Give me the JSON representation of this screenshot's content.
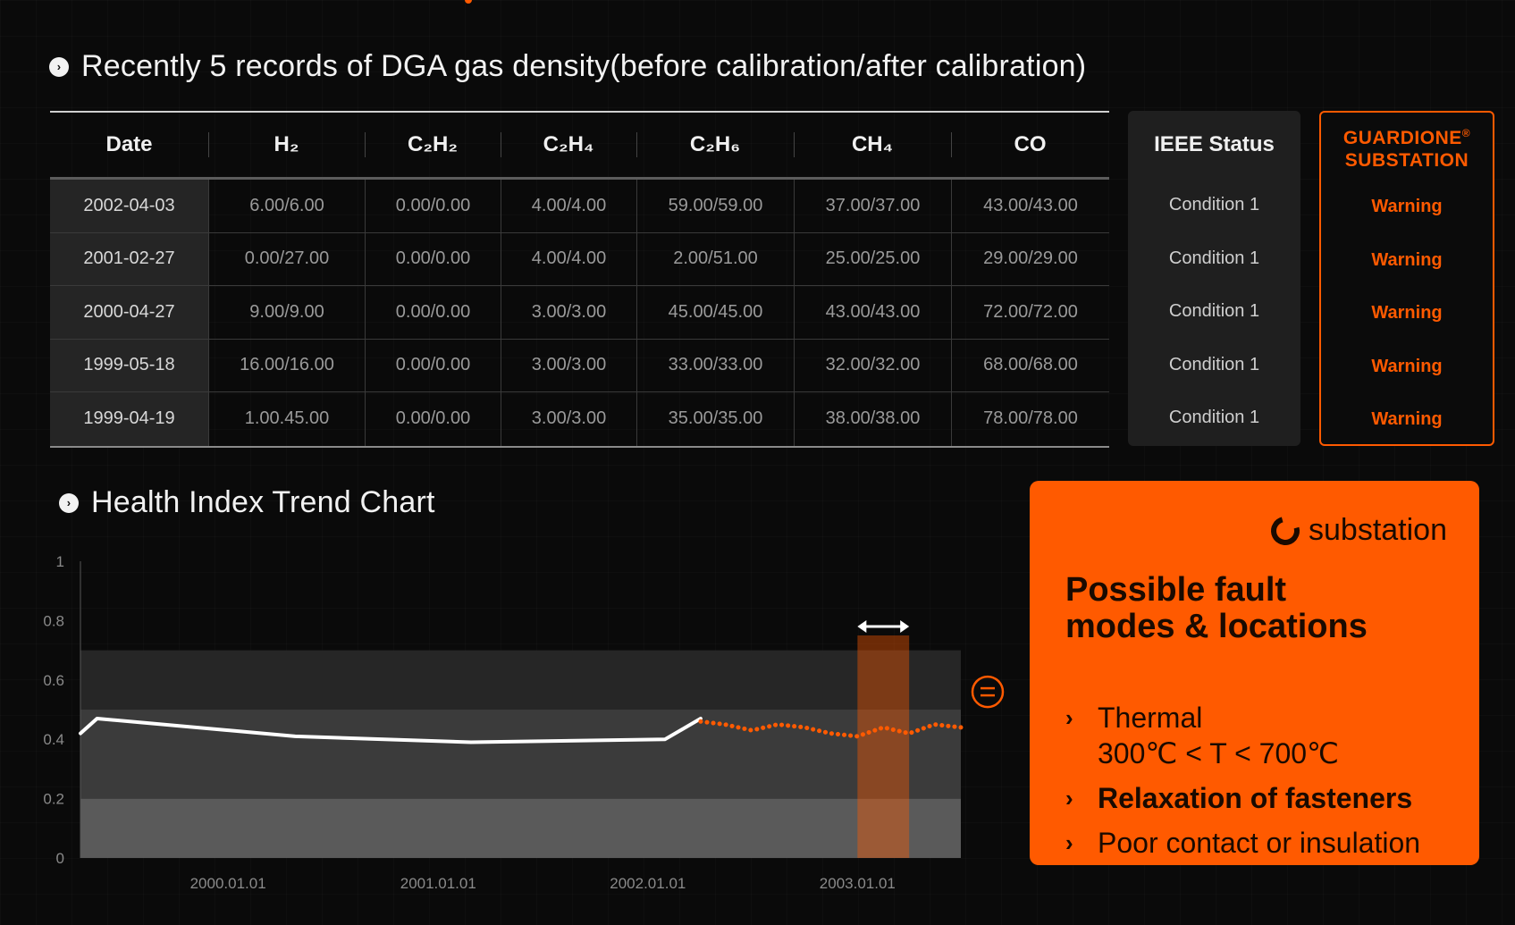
{
  "dga": {
    "title": "Recently 5 records of DGA gas density(before calibration/after calibration)",
    "columns": [
      "Date",
      "H₂",
      "C₂H₂",
      "C₂H₄",
      "C₂H₆",
      "CH₄",
      "CO"
    ],
    "rows": [
      [
        "2002-04-03",
        "6.00/6.00",
        "0.00/0.00",
        "4.00/4.00",
        "59.00/59.00",
        "37.00/37.00",
        "43.00/43.00"
      ],
      [
        "2001-02-27",
        "0.00/27.00",
        "0.00/0.00",
        "4.00/4.00",
        "2.00/51.00",
        "25.00/25.00",
        "29.00/29.00"
      ],
      [
        "2000-04-27",
        "9.00/9.00",
        "0.00/0.00",
        "3.00/3.00",
        "45.00/45.00",
        "43.00/43.00",
        "72.00/72.00"
      ],
      [
        "1999-05-18",
        "16.00/16.00",
        "0.00/0.00",
        "3.00/3.00",
        "33.00/33.00",
        "32.00/32.00",
        "68.00/68.00"
      ],
      [
        "1999-04-19",
        "1.00.45.00",
        "0.00/0.00",
        "3.00/3.00",
        "35.00/35.00",
        "38.00/38.00",
        "78.00/78.00"
      ]
    ]
  },
  "ieee": {
    "header": "IEEE Status",
    "values": [
      "Condition 1",
      "Condition 1",
      "Condition 1",
      "Condition 1",
      "Condition 1"
    ]
  },
  "guardione": {
    "header_line1": "GUARDIONE",
    "header_mark": "®",
    "header_line2": "SUBSTATION",
    "values": [
      "Warning",
      "Warning",
      "Warning",
      "Warning",
      "Warning"
    ]
  },
  "health_chart": {
    "title": "Health Index Trend Chart",
    "bullet_icon": "circle-chevron-icon"
  },
  "chart_data": {
    "type": "line",
    "title": "Health Index Trend Chart",
    "ylim": [
      0,
      1
    ],
    "yticks": [
      "0",
      "0.2",
      "0.4",
      "0.6",
      "0.8",
      "1"
    ],
    "xticks": [
      "2000.01.01",
      "2001.01.01",
      "2002.01.01",
      "2003.01.01"
    ],
    "x_range": [
      "1999.04.19",
      "2003.06.30"
    ],
    "bands": [
      {
        "from": 0,
        "to": 0.2,
        "color": "#5a5a5a"
      },
      {
        "from": 0.2,
        "to": 0.5,
        "color": "#3b3b3b"
      },
      {
        "from": 0.5,
        "to": 0.7,
        "color": "#262626"
      }
    ],
    "series": [
      {
        "style": "solid",
        "color": "#ffffff",
        "x": [
          "1999.04.19",
          "1999.05.18",
          "2000.04.27",
          "2001.02.27",
          "2002.01.31",
          "2002.04.03"
        ],
        "y": [
          0.42,
          0.47,
          0.41,
          0.39,
          0.4,
          0.47
        ]
      },
      {
        "style": "dotted",
        "color": "#ff5a00",
        "x": [
          "2002.04.03",
          "2002.05.15",
          "2002.07.01",
          "2002.08.15",
          "2002.10.01",
          "2002.11.15",
          "2003.01.01",
          "2003.02.15",
          "2003.04.01",
          "2003.05.15",
          "2003.06.30"
        ],
        "y": [
          0.46,
          0.45,
          0.43,
          0.45,
          0.44,
          0.42,
          0.41,
          0.44,
          0.42,
          0.45,
          0.44
        ]
      }
    ],
    "highlight": {
      "from": "2003.01.01",
      "to": "2003.04.01",
      "color": "#ff5a00"
    }
  },
  "fault": {
    "brand": "substation",
    "title_line1": "Possible fault",
    "title_line2": "modes & locations",
    "items": [
      {
        "line1": "Thermal",
        "line2": "300℃ < T < 700℃"
      },
      {
        "line1": "Relaxation of fasteners"
      },
      {
        "line1": "Poor contact or insulation"
      }
    ]
  },
  "colors": {
    "accent": "#ff5a00",
    "background": "#0a0a0a"
  }
}
